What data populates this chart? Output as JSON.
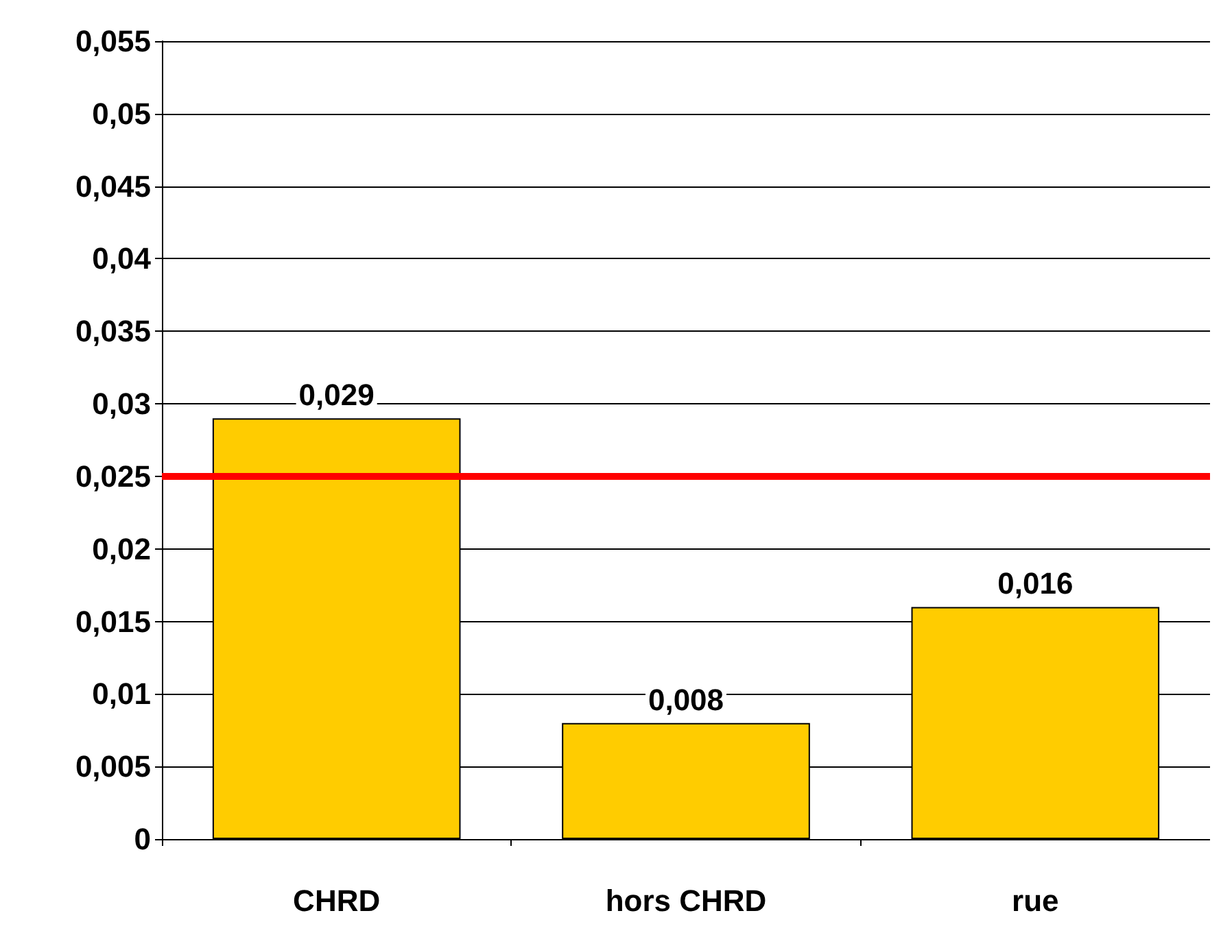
{
  "chart_data": {
    "type": "bar",
    "categories": [
      "CHRD",
      "hors CHRD",
      "rue"
    ],
    "values": [
      0.029,
      0.008,
      0.016
    ],
    "color": "#ffcc00",
    "value_labels": [
      "0,029",
      "0,008",
      "0,016"
    ],
    "ylim": [
      0,
      0.055
    ],
    "yticks": [
      {
        "value": 0,
        "label": "0"
      },
      {
        "value": 0.005,
        "label": "0,005"
      },
      {
        "value": 0.01,
        "label": "0,01"
      },
      {
        "value": 0.015,
        "label": "0,015"
      },
      {
        "value": 0.02,
        "label": "0,02"
      },
      {
        "value": 0.025,
        "label": "0,025"
      },
      {
        "value": 0.03,
        "label": "0,03"
      },
      {
        "value": 0.035,
        "label": "0,035"
      },
      {
        "value": 0.04,
        "label": "0,04"
      },
      {
        "value": 0.045,
        "label": "0,045"
      },
      {
        "value": 0.05,
        "label": "0,05"
      },
      {
        "value": 0.055,
        "label": "0,055"
      }
    ],
    "ref_lines": [
      {
        "axis": "y",
        "value": 0.025,
        "color": "#ff0000"
      }
    ],
    "grid": "y"
  }
}
